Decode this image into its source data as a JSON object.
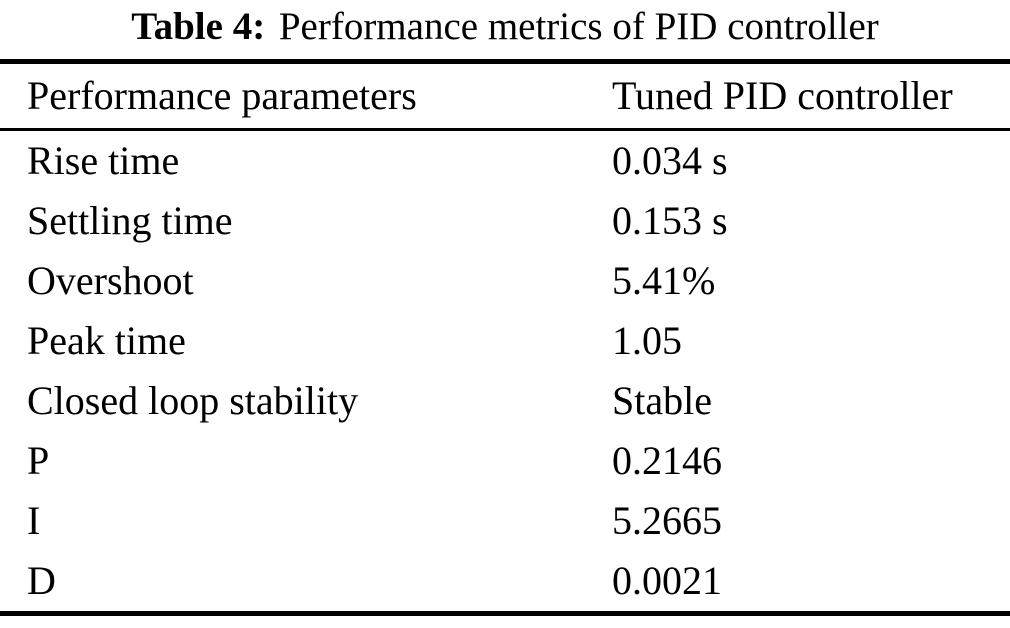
{
  "caption": {
    "label": "Table 4:",
    "text": "Performance metrics of PID controller"
  },
  "table": {
    "headers": [
      "Performance parameters",
      "Tuned PID controller"
    ],
    "rows": [
      {
        "parameter": "Rise time",
        "value": "0.034 s"
      },
      {
        "parameter": "Settling time",
        "value": "0.153 s"
      },
      {
        "parameter": "Overshoot",
        "value": "5.41%"
      },
      {
        "parameter": "Peak time",
        "value": "1.05"
      },
      {
        "parameter": "Closed loop stability",
        "value": "Stable"
      },
      {
        "parameter": "P",
        "value": "0.2146"
      },
      {
        "parameter": "I",
        "value": "5.2665"
      },
      {
        "parameter": "D",
        "value": "0.0021"
      }
    ]
  },
  "colors": {
    "text": "#000000",
    "background": "#ffffff",
    "rule": "#000000"
  }
}
